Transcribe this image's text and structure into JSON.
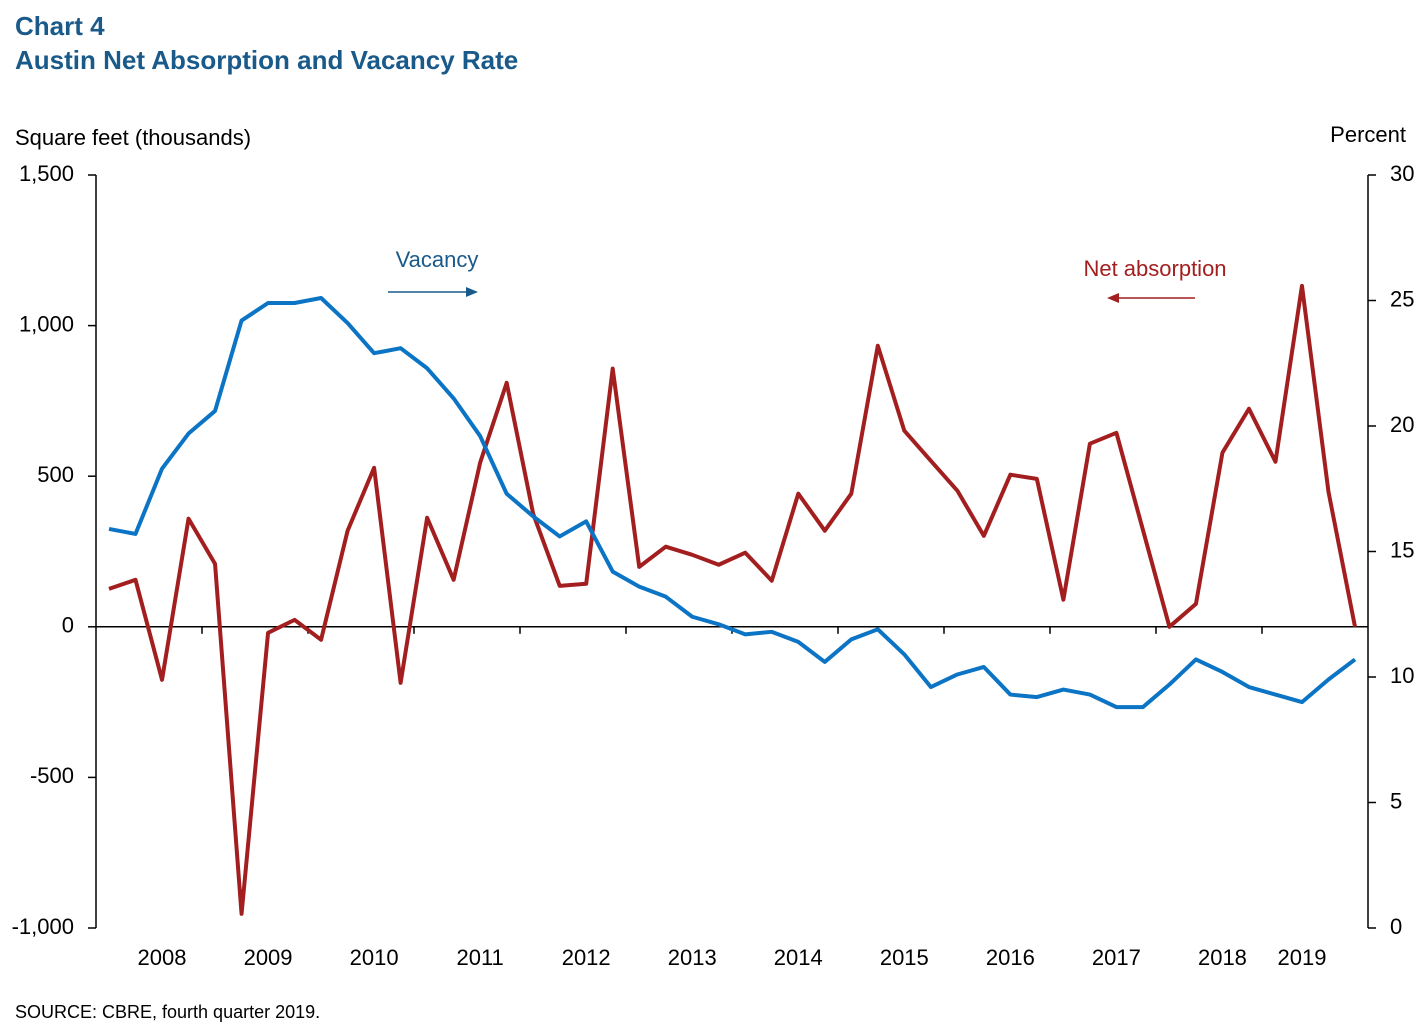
{
  "chart_data": {
    "type": "line",
    "title": "Chart 4",
    "subtitle": "Austin Net Absorption and Vacancy Rate",
    "y_label": "Square feet (thousands)",
    "y2_label": "Percent",
    "source": "SOURCE: CBRE, fourth quarter 2019.",
    "annotations": [
      "Vacancy",
      "Net absorption"
    ],
    "categories": [
      null,
      null,
      "2008",
      null,
      null,
      null,
      "2009",
      null,
      null,
      null,
      "2010",
      null,
      null,
      null,
      "2011",
      null,
      null,
      null,
      "2012",
      null,
      null,
      null,
      "2013",
      null,
      null,
      null,
      "2014",
      null,
      null,
      null,
      "2015",
      null,
      null,
      null,
      "2016",
      null,
      null,
      null,
      "2017",
      null,
      null,
      null,
      "2018",
      null,
      null,
      "2019",
      null,
      null
    ],
    "series": [
      {
        "name": "Net absorption",
        "color": "#a31f1f",
        "axis": "y",
        "values": [
          126,
          156,
          -176,
          359,
          209,
          -953,
          -20,
          23,
          -43,
          319,
          528,
          -186,
          362,
          156,
          545,
          810,
          375,
          136,
          143,
          857,
          199,
          266,
          239,
          206,
          246,
          153,
          442,
          319,
          442,
          933,
          651,
          551,
          452,
          302,
          505,
          491,
          90,
          608,
          644,
          322,
          0,
          76,
          578,
          724,
          548,
          1132,
          448,
          0
        ]
      },
      {
        "name": "Vacancy",
        "color": "#0b74c4",
        "axis": "y2",
        "values": [
          15.9,
          15.7,
          18.3,
          19.7,
          20.6,
          24.2,
          24.9,
          24.9,
          25.1,
          24.1,
          22.9,
          23.1,
          22.3,
          21.1,
          19.6,
          17.3,
          16.4,
          15.6,
          16.2,
          14.2,
          13.6,
          13.2,
          12.4,
          12.1,
          11.7,
          11.8,
          11.4,
          10.6,
          11.5,
          11.9,
          10.9,
          9.6,
          10.1,
          10.4,
          9.3,
          9.2,
          9.5,
          9.3,
          8.8,
          8.8,
          9.7,
          10.7,
          10.2,
          9.6,
          9.3,
          9.0,
          9.9,
          10.7
        ]
      }
    ],
    "ylim": [
      -1000,
      1500
    ],
    "yticks": [
      {
        "value": -1000,
        "label": "-1,000"
      },
      -500,
      0,
      500,
      {
        "value": 1000,
        "label": "1,000"
      },
      {
        "value": 1500,
        "label": "1,500"
      }
    ],
    "y2lim": [
      0,
      30
    ],
    "y2ticks": [
      0,
      5,
      10,
      15,
      20,
      25,
      30
    ]
  }
}
